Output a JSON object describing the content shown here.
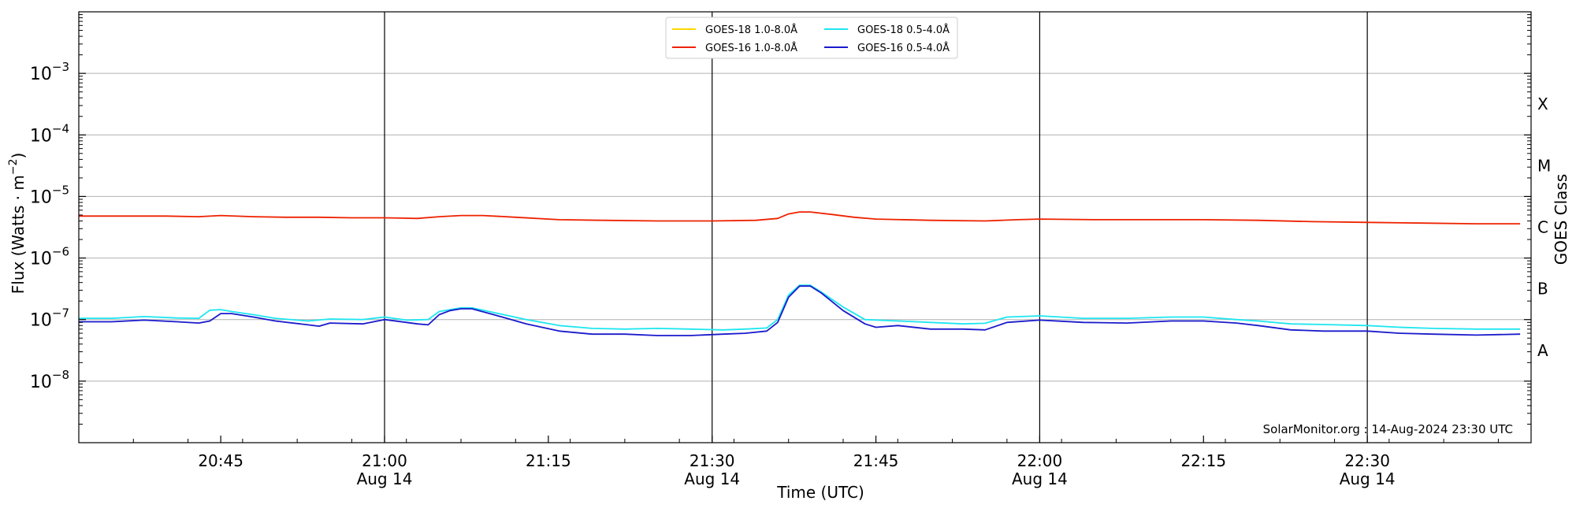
{
  "chart_data": {
    "type": "line",
    "xlabel": "Time (UTC)",
    "ylabel_main": "Flux (Watts · m",
    "ylabel_sup": "−2",
    "ylabel_close": ")",
    "right_label": "GOES Class",
    "watermark": "SolarMonitor.org : 14-Aug-2024 23:30 UTC",
    "y_scale": "log",
    "ylim": [
      1e-09,
      0.01
    ],
    "xlim": [
      "20:32",
      "22:45"
    ],
    "grid": "horizontal",
    "legend_position": "top-center",
    "y_ticks": [
      {
        "value": 1e-08,
        "base": "10",
        "exp": "−8"
      },
      {
        "value": 1e-07,
        "base": "10",
        "exp": "−7"
      },
      {
        "value": 1e-06,
        "base": "10",
        "exp": "−6"
      },
      {
        "value": 1e-05,
        "base": "10",
        "exp": "−5"
      },
      {
        "value": 0.0001,
        "base": "10",
        "exp": "−4"
      },
      {
        "value": 0.001,
        "base": "10",
        "exp": "−3"
      }
    ],
    "x_ticks": [
      {
        "time": "20:45",
        "label": "20:45",
        "sublabel": "",
        "major": false
      },
      {
        "time": "21:00",
        "label": "21:00",
        "sublabel": "Aug 14",
        "major": true
      },
      {
        "time": "21:15",
        "label": "21:15",
        "sublabel": "",
        "major": false
      },
      {
        "time": "21:30",
        "label": "21:30",
        "sublabel": "Aug 14",
        "major": true
      },
      {
        "time": "21:45",
        "label": "21:45",
        "sublabel": "",
        "major": false
      },
      {
        "time": "22:00",
        "label": "22:00",
        "sublabel": "Aug 14",
        "major": true
      },
      {
        "time": "22:15",
        "label": "22:15",
        "sublabel": "",
        "major": false
      },
      {
        "time": "22:30",
        "label": "22:30",
        "sublabel": "Aug 14",
        "major": true
      }
    ],
    "goes_classes": [
      {
        "label": "A",
        "value": 3.16e-08
      },
      {
        "label": "B",
        "value": 3.16e-07
      },
      {
        "label": "C",
        "value": 3.16e-06
      },
      {
        "label": "M",
        "value": 3.16e-05
      },
      {
        "label": "X",
        "value": 0.000316
      }
    ],
    "series": [
      {
        "name": "GOES-18 1.0-8.0Å",
        "color": "#ffd700",
        "x": [],
        "values": []
      },
      {
        "name": "GOES-18 0.5-4.0Å",
        "color": "#1ee6f0",
        "x": [
          "20:32",
          "20:35",
          "20:38",
          "20:41",
          "20:43",
          "20:44",
          "20:45",
          "20:46",
          "20:48",
          "20:50",
          "20:53",
          "20:55",
          "20:58",
          "21:00",
          "21:02",
          "21:04",
          "21:05",
          "21:07",
          "21:08",
          "21:10",
          "21:13",
          "21:16",
          "21:19",
          "21:22",
          "21:25",
          "21:28",
          "21:31",
          "21:33",
          "21:35",
          "21:36",
          "21:37",
          "21:38",
          "21:39",
          "21:40",
          "21:42",
          "21:44",
          "21:47",
          "21:50",
          "21:53",
          "21:55",
          "21:57",
          "22:00",
          "22:04",
          "22:08",
          "22:12",
          "22:15",
          "22:18",
          "22:20",
          "22:23",
          "22:26",
          "22:30",
          "22:33",
          "22:36",
          "22:40",
          "22:44"
        ],
        "values": [
          1.05e-07,
          1.05e-07,
          1.12e-07,
          1.06e-07,
          1.05e-07,
          1.42e-07,
          1.45e-07,
          1.35e-07,
          1.2e-07,
          1.05e-07,
          9.5e-08,
          1.02e-07,
          1e-07,
          1.1e-07,
          9.8e-08,
          1e-07,
          1.35e-07,
          1.55e-07,
          1.55e-07,
          1.3e-07,
          1e-07,
          8e-08,
          7.2e-08,
          7e-08,
          7.2e-08,
          7e-08,
          6.8e-08,
          7e-08,
          7.3e-08,
          1e-07,
          2.5e-07,
          3.6e-07,
          3.6e-07,
          2.8e-07,
          1.6e-07,
          1e-07,
          9.5e-08,
          9e-08,
          8.5e-08,
          8.7e-08,
          1.1e-07,
          1.15e-07,
          1.05e-07,
          1.05e-07,
          1.1e-07,
          1.1e-07,
          1e-07,
          9.5e-08,
          8.5e-08,
          8.3e-08,
          8e-08,
          7.5e-08,
          7.2e-08,
          7e-08,
          7e-08
        ]
      },
      {
        "name": "GOES-16 1.0-8.0Å",
        "color": "#ee2200",
        "x": [
          "20:32",
          "20:36",
          "20:40",
          "20:43",
          "20:45",
          "20:48",
          "20:51",
          "20:54",
          "20:57",
          "21:00",
          "21:03",
          "21:05",
          "21:07",
          "21:09",
          "21:12",
          "21:16",
          "21:20",
          "21:25",
          "21:30",
          "21:34",
          "21:36",
          "21:37",
          "21:38",
          "21:39",
          "21:41",
          "21:43",
          "21:45",
          "21:50",
          "21:55",
          "21:58",
          "22:00",
          "22:05",
          "22:10",
          "22:15",
          "22:20",
          "22:25",
          "22:30",
          "22:35",
          "22:40",
          "22:44"
        ],
        "values": [
          4.8e-06,
          4.8e-06,
          4.8e-06,
          4.7e-06,
          4.9e-06,
          4.7e-06,
          4.6e-06,
          4.6e-06,
          4.5e-06,
          4.5e-06,
          4.4e-06,
          4.7e-06,
          4.9e-06,
          4.9e-06,
          4.6e-06,
          4.2e-06,
          4.1e-06,
          4e-06,
          4e-06,
          4.1e-06,
          4.4e-06,
          5.2e-06,
          5.6e-06,
          5.6e-06,
          5.1e-06,
          4.6e-06,
          4.3e-06,
          4.1e-06,
          4e-06,
          4.2e-06,
          4.3e-06,
          4.2e-06,
          4.2e-06,
          4.2e-06,
          4.1e-06,
          3.9e-06,
          3.8e-06,
          3.7e-06,
          3.6e-06,
          3.6e-06
        ]
      },
      {
        "name": "GOES-16 0.5-4.0Å",
        "color": "#1a1acc",
        "x": [
          "20:32",
          "20:35",
          "20:38",
          "20:41",
          "20:43",
          "20:44",
          "20:45",
          "20:46",
          "20:48",
          "20:50",
          "20:53",
          "20:54",
          "20:55",
          "20:58",
          "21:00",
          "21:02",
          "21:03",
          "21:04",
          "21:05",
          "21:06",
          "21:07",
          "21:08",
          "21:10",
          "21:13",
          "21:16",
          "21:19",
          "21:22",
          "21:25",
          "21:28",
          "21:31",
          "21:33",
          "21:35",
          "21:36",
          "21:37",
          "21:38",
          "21:39",
          "21:40",
          "21:42",
          "21:44",
          "21:45",
          "21:47",
          "21:50",
          "21:53",
          "21:55",
          "21:57",
          "22:00",
          "22:04",
          "22:08",
          "22:12",
          "22:15",
          "22:18",
          "22:20",
          "22:23",
          "22:26",
          "22:30",
          "22:33",
          "22:36",
          "22:40",
          "22:44"
        ],
        "values": [
          9.2e-08,
          9.2e-08,
          9.8e-08,
          9.2e-08,
          8.8e-08,
          9.5e-08,
          1.25e-07,
          1.25e-07,
          1.1e-07,
          9.5e-08,
          8.2e-08,
          7.8e-08,
          8.8e-08,
          8.5e-08,
          1e-07,
          9e-08,
          8.5e-08,
          8.2e-08,
          1.2e-07,
          1.4e-07,
          1.5e-07,
          1.5e-07,
          1.2e-07,
          8.5e-08,
          6.5e-08,
          5.8e-08,
          5.8e-08,
          5.5e-08,
          5.5e-08,
          5.8e-08,
          6e-08,
          6.5e-08,
          9e-08,
          2.3e-07,
          3.5e-07,
          3.5e-07,
          2.7e-07,
          1.4e-07,
          8.5e-08,
          7.5e-08,
          8e-08,
          7e-08,
          7e-08,
          6.8e-08,
          9e-08,
          9.8e-08,
          9e-08,
          8.8e-08,
          9.5e-08,
          9.5e-08,
          8.8e-08,
          8e-08,
          6.8e-08,
          6.5e-08,
          6.5e-08,
          6e-08,
          5.8e-08,
          5.6e-08,
          5.8e-08
        ]
      }
    ],
    "legend": [
      {
        "series": 0,
        "label": "GOES-18 1.0-8.0Å",
        "color": "#ffd700"
      },
      {
        "series": 1,
        "label": "GOES-18 0.5-4.0Å",
        "color": "#1ee6f0"
      },
      {
        "series": 2,
        "label": "GOES-16 1.0-8.0Å",
        "color": "#ee2200"
      },
      {
        "series": 3,
        "label": "GOES-16 0.5-4.0Å",
        "color": "#1a1acc"
      }
    ]
  }
}
